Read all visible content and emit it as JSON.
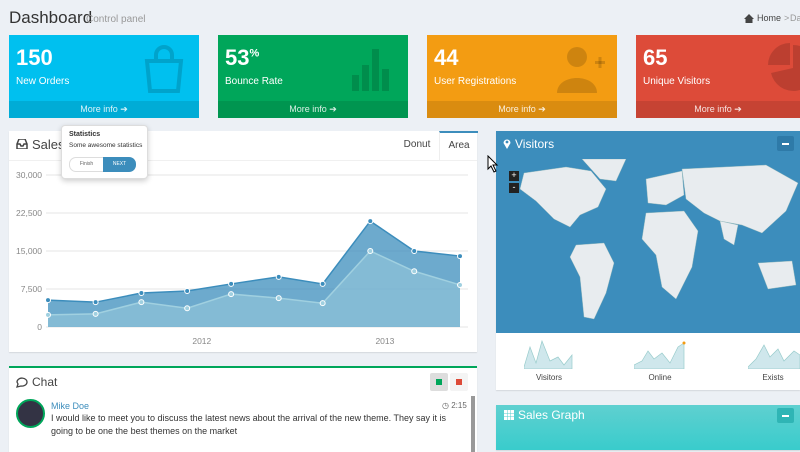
{
  "header": {
    "title": "Dashboard",
    "subtitle": "Control panel",
    "breadcrumb": [
      "Home",
      "Dashboard"
    ]
  },
  "stat_boxes": [
    {
      "value": 150,
      "label": "New Orders",
      "link": "More info",
      "color": "#00c0ef"
    },
    {
      "value": 53,
      "suffix": "%",
      "label": "Bounce Rate",
      "link": "More info",
      "color": "#00a65a"
    },
    {
      "value": 44,
      "label": "User Registrations",
      "link": "More info",
      "color": "#f39c12"
    },
    {
      "value": 65,
      "label": "Unique Visitors",
      "link": "More info",
      "color": "#dd4b39"
    }
  ],
  "tour_popover": {
    "title": "Statistics",
    "text": "Some awesome statistics",
    "buttons": [
      "Finish",
      "NEXT"
    ]
  },
  "sales_box": {
    "title": "Sales",
    "tabs": [
      "Donut",
      "Area"
    ]
  },
  "chart_data": {
    "type": "area",
    "x": [
      2011.16,
      2011.42,
      2011.67,
      2011.92,
      2012.16,
      2012.42,
      2012.66,
      2012.92,
      2013.16,
      2013.41
    ],
    "series": [
      {
        "color": "#3c8dbc",
        "values": [
          5300,
          4900,
          6700,
          7100,
          8500,
          9900,
          8500,
          20900,
          15000,
          14000
        ]
      },
      {
        "color": "#a0d0e0",
        "values": [
          2400,
          2600,
          4900,
          3700,
          6500,
          5700,
          4700,
          15000,
          11000,
          8300
        ]
      }
    ],
    "xlim": [
      2011.16,
      2013.41
    ],
    "xticks": [
      2012,
      2013
    ],
    "ylim": [
      0,
      30000
    ],
    "yticks": [
      0,
      {
        "value": 7500,
        "label": "7,500"
      },
      {
        "value": 15000,
        "label": "15,000"
      },
      {
        "value": 22500,
        "label": "22,500"
      },
      {
        "value": 30000,
        "label": "30,000"
      }
    ],
    "grid": true
  },
  "visitors_box": {
    "title": "Visitors",
    "zoom": [
      "+",
      "-"
    ],
    "sparklines": [
      "Visitors",
      "Online",
      "Exists"
    ]
  },
  "chat_box": {
    "title": "Chat",
    "messages": [
      {
        "name": "Mike Doe",
        "time": "2:15",
        "text": "I would like to meet you to discuss the latest news about the arrival of the new theme. They say it is going to be one the best themes on the market"
      }
    ]
  },
  "sales_graph_box": {
    "title": "Sales Graph"
  }
}
